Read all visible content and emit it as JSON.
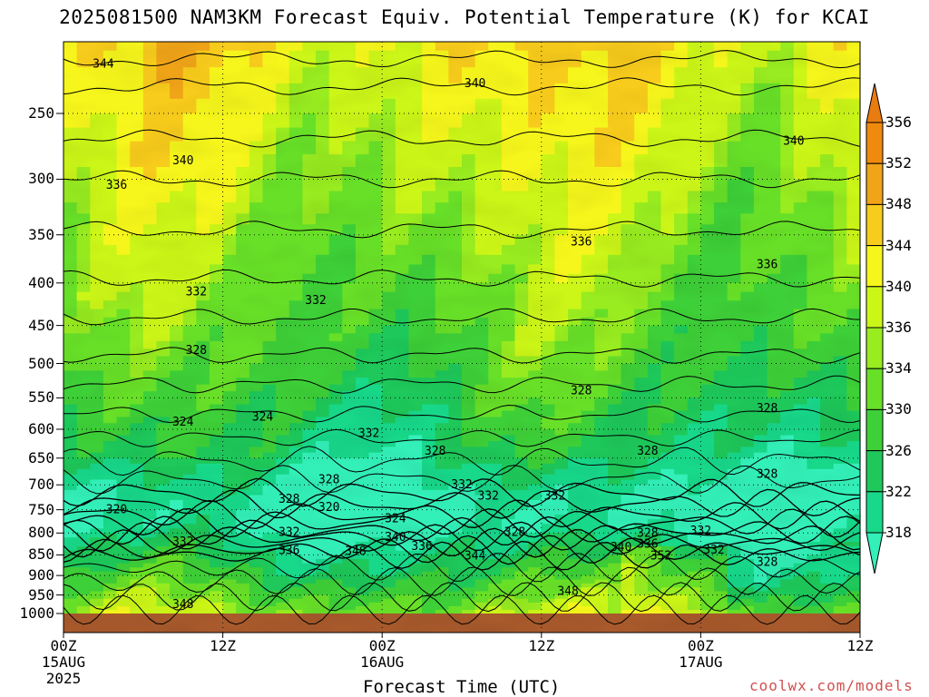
{
  "title": "2025081500 NAM3KM Forecast Equiv. Potential Temperature (K) for KCAI",
  "credit": "coolwx.com/models",
  "chart_data": {
    "type": "heatmap",
    "title": "2025081500 NAM3KM Forecast Equiv. Potential Temperature (K) for KCAI",
    "xlabel": "Forecast Time (UTC)",
    "ylabel": "",
    "x_range_hours": [
      0,
      60
    ],
    "y_axis": "pressure (hPa), log scale, decreasing upward",
    "y_range": [
      1000,
      200
    ],
    "y_ticks": [
      250,
      300,
      350,
      400,
      450,
      500,
      550,
      600,
      650,
      700,
      750,
      800,
      850,
      900,
      950,
      1000
    ],
    "x_ticks": [
      {
        "line1": "00Z",
        "line2": "15AUG",
        "line3": "2025",
        "hour": 0
      },
      {
        "line1": "12Z",
        "line2": "",
        "line3": "",
        "hour": 12
      },
      {
        "line1": "00Z",
        "line2": "16AUG",
        "line3": "",
        "hour": 24
      },
      {
        "line1": "12Z",
        "line2": "",
        "line3": "",
        "hour": 36
      },
      {
        "line1": "00Z",
        "line2": "17AUG",
        "line3": "",
        "hour": 48
      },
      {
        "line1": "12Z",
        "line2": "",
        "line3": "",
        "hour": 60
      }
    ],
    "colorbar": {
      "levels": [
        318,
        322,
        326,
        330,
        334,
        336,
        340,
        344,
        348,
        352,
        356
      ],
      "colors": [
        "#33f0b8",
        "#18d88a",
        "#1ec85a",
        "#3ed038",
        "#68e028",
        "#98ec20",
        "#ccf618",
        "#f6f61c",
        "#f8cc1c",
        "#f0a418",
        "#f08a0e",
        "#e87c10"
      ]
    },
    "contour_labels": [
      {
        "text": "344",
        "hour": 3,
        "p": 218
      },
      {
        "text": "340",
        "hour": 31,
        "p": 230
      },
      {
        "text": "340",
        "hour": 55,
        "p": 270
      },
      {
        "text": "340",
        "hour": 9,
        "p": 285
      },
      {
        "text": "336",
        "hour": 4,
        "p": 305
      },
      {
        "text": "336",
        "hour": 39,
        "p": 357
      },
      {
        "text": "336",
        "hour": 53,
        "p": 380
      },
      {
        "text": "332",
        "hour": 10,
        "p": 410
      },
      {
        "text": "332",
        "hour": 19,
        "p": 420
      },
      {
        "text": "328",
        "hour": 10,
        "p": 482
      },
      {
        "text": "328",
        "hour": 39,
        "p": 539
      },
      {
        "text": "328",
        "hour": 53,
        "p": 566
      },
      {
        "text": "324",
        "hour": 9,
        "p": 588
      },
      {
        "text": "324",
        "hour": 15,
        "p": 580
      },
      {
        "text": "332",
        "hour": 23,
        "p": 607
      },
      {
        "text": "328",
        "hour": 28,
        "p": 637
      },
      {
        "text": "328",
        "hour": 44,
        "p": 637
      },
      {
        "text": "328",
        "hour": 53,
        "p": 680
      },
      {
        "text": "328",
        "hour": 20,
        "p": 690
      },
      {
        "text": "332",
        "hour": 30,
        "p": 700
      },
      {
        "text": "332",
        "hour": 32,
        "p": 722
      },
      {
        "text": "332",
        "hour": 37,
        "p": 722
      },
      {
        "text": "328",
        "hour": 17,
        "p": 728
      },
      {
        "text": "320",
        "hour": 4,
        "p": 750
      },
      {
        "text": "320",
        "hour": 20,
        "p": 745
      },
      {
        "text": "324",
        "hour": 25,
        "p": 769
      },
      {
        "text": "332",
        "hour": 17,
        "p": 798
      },
      {
        "text": "328",
        "hour": 34,
        "p": 798
      },
      {
        "text": "328",
        "hour": 44,
        "p": 800
      },
      {
        "text": "332",
        "hour": 48,
        "p": 795
      },
      {
        "text": "332",
        "hour": 9,
        "p": 820
      },
      {
        "text": "340",
        "hour": 25,
        "p": 810
      },
      {
        "text": "336",
        "hour": 27,
        "p": 830
      },
      {
        "text": "336",
        "hour": 17,
        "p": 840
      },
      {
        "text": "348",
        "hour": 22,
        "p": 842
      },
      {
        "text": "340",
        "hour": 42,
        "p": 832
      },
      {
        "text": "336",
        "hour": 44,
        "p": 825
      },
      {
        "text": "344",
        "hour": 31,
        "p": 852
      },
      {
        "text": "352",
        "hour": 45,
        "p": 852
      },
      {
        "text": "332",
        "hour": 49,
        "p": 838
      },
      {
        "text": "328",
        "hour": 53,
        "p": 867
      },
      {
        "text": "348",
        "hour": 38,
        "p": 940
      },
      {
        "text": "348",
        "hour": 9,
        "p": 975
      }
    ],
    "surface": "terrain below ~1000 hPa shown in brown",
    "grid": true
  }
}
